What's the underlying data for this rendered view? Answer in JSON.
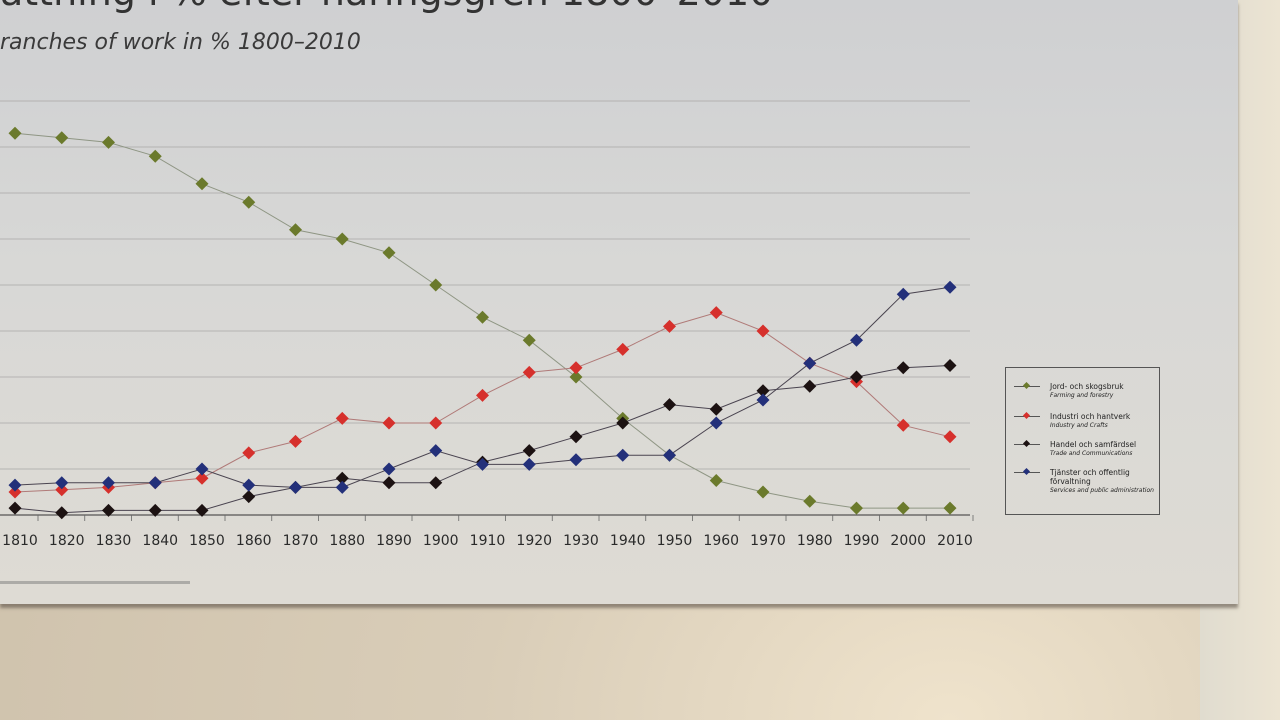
{
  "header": {
    "title_fragment": "attning i % efter näringsgren 1800–2010",
    "subtitle": "ranches of work in % 1800–2010"
  },
  "chart_data": {
    "type": "line",
    "title": "attning i % efter näringsgren 1800–2010",
    "subtitle": "ranches of work in % 1800–2010",
    "xlabel": "",
    "ylabel": "",
    "x": [
      1810,
      1820,
      1830,
      1840,
      1850,
      1860,
      1870,
      1880,
      1890,
      1900,
      1910,
      1920,
      1930,
      1940,
      1950,
      1960,
      1970,
      1980,
      1990,
      2000,
      2010
    ],
    "x_tick_labels": [
      "1810",
      "1820",
      "1830",
      "1840",
      "1850",
      "1860",
      "1870",
      "1880",
      "1890",
      "1900",
      "1910",
      "1920",
      "1930",
      "1940",
      "1950",
      "1960",
      "1970",
      "1980",
      "1990",
      "2000",
      "2010"
    ],
    "ylim": [
      0,
      90
    ],
    "y_gridlines_every": 10,
    "y_tick_labels_visible": false,
    "grid": true,
    "legend_position": "right",
    "marker": "diamond",
    "series": [
      {
        "name": "Jord- och skogsbruk",
        "name_en": "Farming and forestry",
        "color": "#6b7a2c",
        "values": [
          83,
          82,
          81,
          78,
          72,
          68,
          62,
          60,
          57,
          50,
          43,
          38,
          30,
          21,
          13,
          7.5,
          5,
          3,
          1.5,
          1.5,
          1.5
        ]
      },
      {
        "name": "Industri och hantverk",
        "name_en": "Industry and Crafts",
        "color": "#d6302c",
        "values": [
          5,
          5.5,
          6,
          7,
          8,
          13.5,
          16,
          21,
          20,
          20,
          26,
          31,
          32,
          36,
          41,
          44,
          40,
          33,
          29,
          19.5,
          17
        ]
      },
      {
        "name": "Handel och samfärdsel",
        "name_en": "Trade and Communications",
        "color": "#1c1212",
        "values": [
          1.5,
          0.5,
          1,
          1,
          1,
          4,
          6,
          8,
          7,
          7,
          11.5,
          14,
          17,
          20,
          24,
          23,
          27,
          28,
          30,
          32,
          32.5
        ]
      },
      {
        "name": "Tjänster och offentlig förvaltning",
        "name_en": "Services and public administration",
        "color": "#23307a",
        "values": [
          6.5,
          7,
          7,
          7,
          10,
          6.5,
          6,
          6,
          10,
          14,
          11,
          11,
          12,
          13,
          13,
          20,
          25,
          33,
          38,
          48,
          49.5
        ]
      }
    ]
  }
}
